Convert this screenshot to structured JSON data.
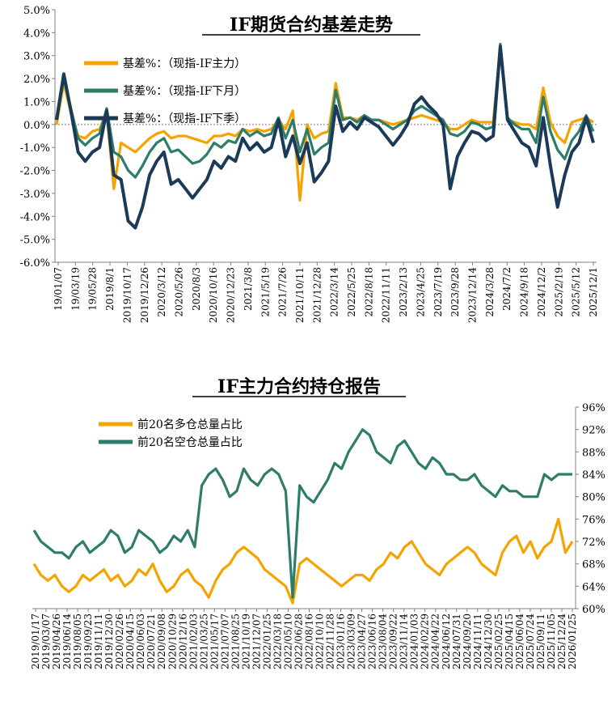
{
  "colors": {
    "orange": "#F5A300",
    "teal": "#2E7D6B",
    "navy": "#1B3A57"
  },
  "chart_data": [
    {
      "type": "line",
      "title": "IF期货合约基差走势",
      "ylim": [
        -6.0,
        5.0
      ],
      "yticks": [
        "5.0%",
        "4.0%",
        "3.0%",
        "2.0%",
        "1.0%",
        "0.0%",
        "-1.0%",
        "-2.0%",
        "-3.0%",
        "-4.0%",
        "-5.0%",
        "-6.0%"
      ],
      "xticks": [
        "19/01/07",
        "19/03/19",
        "19/05/28",
        "2019/8/1",
        "2019/10/17",
        "2019/12/26",
        "2020/3/12",
        "2020/5/26",
        "2020/8/3",
        "2020/10/16",
        "2020/12/23",
        "2021/3/8",
        "2021/5/19",
        "2021/7/26",
        "2021/10/11",
        "2021/12/28",
        "2022/3/14",
        "2022/5/25",
        "2022/8/18",
        "2022/11/11",
        "2023/2/13",
        "2023/4/25",
        "2023/7/19",
        "2023/9/28",
        "2023/12/14",
        "2024/3/28",
        "2024/7/2",
        "2024/9/18",
        "2024/12/2",
        "2025/2/19",
        "2025/5/12",
        "2025/12/1"
      ],
      "legend_position": "top-left",
      "series": [
        {
          "name": "基差%：（现指-IF主力）",
          "color": "#F5A300",
          "values": [
            0.0,
            1.8,
            0.5,
            -0.5,
            -0.6,
            -0.3,
            -0.2,
            0.5,
            -2.8,
            -0.8,
            -1.0,
            -1.2,
            -0.9,
            -0.6,
            -0.4,
            -0.3,
            -0.6,
            -0.5,
            -0.5,
            -0.6,
            -0.7,
            -0.8,
            -0.5,
            -0.5,
            -0.4,
            -0.5,
            -0.2,
            -0.3,
            -0.2,
            -0.3,
            -0.2,
            0.2,
            -0.2,
            0.6,
            -3.3,
            0.0,
            -0.6,
            -0.4,
            -0.3,
            1.8,
            0.3,
            0.3,
            0.2,
            0.4,
            0.2,
            0.2,
            0.1,
            0.0,
            0.1,
            0.2,
            0.3,
            0.4,
            0.3,
            0.2,
            0.1,
            -0.2,
            -0.2,
            0.0,
            0.2,
            0.1,
            0.1,
            0.1,
            3.4,
            0.2,
            0.1,
            0.0,
            0.0,
            -0.2,
            1.6,
            0.1,
            -0.5,
            -0.8,
            0.1,
            0.2,
            0.3,
            0.1
          ]
        },
        {
          "name": "基差%：（现指-IF下月）",
          "color": "#2E7D6B",
          "values": [
            0.2,
            2.0,
            0.7,
            -0.6,
            -0.9,
            -0.6,
            -0.4,
            0.7,
            -1.2,
            -1.4,
            -2.0,
            -2.3,
            -1.8,
            -1.2,
            -0.8,
            -0.6,
            -1.2,
            -1.1,
            -1.4,
            -1.7,
            -1.6,
            -1.3,
            -0.8,
            -1.0,
            -0.7,
            -0.8,
            -0.2,
            -0.5,
            -0.3,
            -0.5,
            -0.4,
            0.3,
            -0.6,
            0.2,
            -1.2,
            -0.2,
            -1.3,
            -1.0,
            -0.8,
            1.5,
            0.2,
            0.3,
            0.1,
            0.4,
            0.2,
            0.2,
            0.0,
            -0.2,
            0.0,
            0.2,
            0.6,
            0.8,
            0.6,
            0.4,
            0.2,
            -0.4,
            -0.5,
            -0.3,
            0.1,
            0.0,
            -0.2,
            -0.1,
            3.5,
            0.3,
            0.0,
            -0.2,
            -0.2,
            -0.8,
            1.2,
            -0.3,
            -1.1,
            -1.5,
            -0.7,
            -0.3,
            0.4,
            -0.3
          ]
        },
        {
          "name": "基差%：（现指-IF下季）",
          "color": "#1B3A57",
          "values": [
            0.2,
            2.2,
            0.6,
            -1.2,
            -1.6,
            -1.2,
            -1.0,
            0.6,
            -2.2,
            -2.4,
            -4.2,
            -4.5,
            -3.6,
            -2.2,
            -1.6,
            -1.2,
            -2.6,
            -2.4,
            -2.8,
            -3.2,
            -2.8,
            -2.4,
            -1.6,
            -1.9,
            -1.4,
            -1.6,
            -0.6,
            -1.1,
            -0.8,
            -1.2,
            -1.0,
            0.2,
            -1.4,
            -0.5,
            -1.7,
            -0.8,
            -2.5,
            -2.1,
            -1.6,
            0.8,
            -0.3,
            0.1,
            -0.2,
            0.3,
            0.1,
            -0.1,
            -0.5,
            -0.9,
            -0.5,
            0.0,
            0.9,
            1.2,
            0.8,
            0.5,
            0.0,
            -2.8,
            -1.4,
            -0.8,
            -0.3,
            -0.4,
            -0.7,
            -0.5,
            3.4,
            0.2,
            -0.3,
            -0.8,
            -1.0,
            -1.8,
            0.3,
            -1.8,
            -3.6,
            -2.2,
            -1.2,
            -0.8,
            0.3,
            -0.8
          ]
        }
      ]
    },
    {
      "type": "line",
      "title": "IF主力合约持仓报告",
      "ylim": [
        60,
        96
      ],
      "yticks": [
        "96%",
        "92%",
        "88%",
        "84%",
        "80%",
        "76%",
        "72%",
        "68%",
        "64%",
        "60%"
      ],
      "xticks": [
        "2019/01/17",
        "2019/03/07",
        "2019/04/26",
        "2019/06/14",
        "2019/08/05",
        "2019/09/23",
        "2019/11/11",
        "2019/12/30",
        "2020/02/26",
        "2020/04/15",
        "2020/06/03",
        "2020/07/21",
        "2020/09/08",
        "2020/10/29",
        "2020/12/16",
        "2021/02/03",
        "2021/03/25",
        "2021/05/17",
        "2021/07/07",
        "2021/08/25",
        "2021/10/19",
        "2021/12/07",
        "2022/01/25",
        "2022/03/18",
        "2022/05/10",
        "2022/06/28",
        "2022/08/16",
        "2022/10/10",
        "2022/11/28",
        "2023/01/16",
        "2023/03/09",
        "2023/04/27",
        "2023/06/16",
        "2023/08/04",
        "2023/09/22",
        "2023/11/14",
        "2024/01/03",
        "2024/02/29",
        "2024/04/22",
        "2024/06/12",
        "2024/07/31",
        "2024/09/20",
        "2024/11/11",
        "2024/12/30",
        "2025/02/25",
        "2025/04/15",
        "2025/06/04",
        "2025/07/24",
        "2025/09/11",
        "2025/11/05",
        "2025/12/24",
        "2026/01/25"
      ],
      "legend_position": "top-left",
      "series": [
        {
          "name": "前20名多仓总量占比",
          "color": "#F5A300",
          "values": [
            68,
            66,
            65,
            66,
            64,
            63,
            64,
            66,
            65,
            66,
            67,
            65,
            66,
            64,
            65,
            67,
            66,
            68,
            65,
            63,
            64,
            66,
            67,
            65,
            64,
            62,
            65,
            67,
            68,
            70,
            71,
            70,
            69,
            67,
            66,
            65,
            64,
            61,
            68,
            69,
            68,
            67,
            66,
            65,
            64,
            65,
            66,
            66,
            65,
            67,
            68,
            70,
            69,
            71,
            72,
            70,
            68,
            67,
            66,
            68,
            69,
            70,
            71,
            70,
            68,
            67,
            66,
            70,
            72,
            73,
            70,
            72,
            69,
            71,
            72,
            76,
            70,
            72
          ]
        },
        {
          "name": "前20名空仓总量占比",
          "color": "#2E7D6B",
          "values": [
            74,
            72,
            71,
            70,
            70,
            69,
            71,
            72,
            70,
            71,
            72,
            74,
            73,
            70,
            71,
            74,
            73,
            72,
            70,
            71,
            73,
            72,
            74,
            71,
            82,
            84,
            85,
            83,
            80,
            81,
            85,
            83,
            82,
            84,
            85,
            84,
            81,
            62,
            82,
            80,
            79,
            81,
            83,
            86,
            85,
            88,
            90,
            92,
            91,
            88,
            87,
            86,
            89,
            90,
            88,
            86,
            85,
            87,
            86,
            84,
            84,
            83,
            83,
            84,
            82,
            81,
            80,
            82,
            81,
            81,
            80,
            80,
            80,
            84,
            83,
            84,
            84,
            84
          ]
        }
      ]
    }
  ]
}
